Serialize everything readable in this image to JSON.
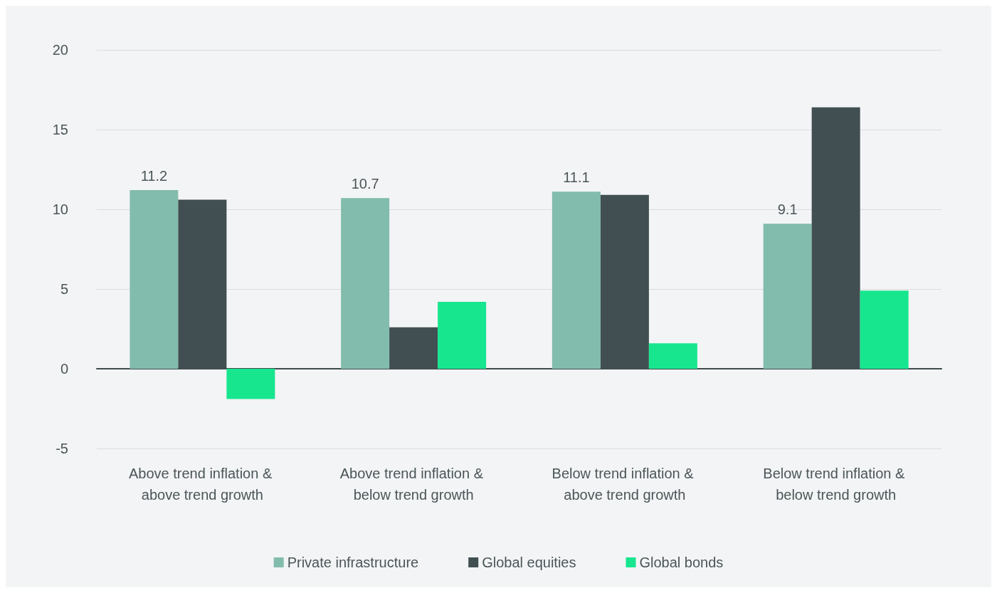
{
  "chart_data": {
    "type": "bar",
    "categories": [
      "Above trend inflation & above trend growth",
      "Above trend inflation & below trend growth",
      "Below trend inflation & above trend growth",
      "Below trend inflation & below trend growth"
    ],
    "series": [
      {
        "name": "Private infrastructure",
        "color": "#82bcad",
        "values": [
          11.2,
          10.7,
          11.1,
          9.1
        ],
        "value_labels": [
          "11.2",
          "10.7",
          "11.1",
          "9.1"
        ]
      },
      {
        "name": "Global equities",
        "color": "#414f52",
        "values": [
          10.6,
          2.6,
          10.9,
          16.4
        ]
      },
      {
        "name": "Global bonds",
        "color": "#17e68f",
        "values": [
          -1.9,
          4.2,
          1.6,
          4.9
        ]
      }
    ],
    "ylim": [
      -5,
      20
    ],
    "yticks": [
      -5,
      0,
      5,
      10,
      15,
      20
    ],
    "grid": "y",
    "legend": "bottom"
  }
}
